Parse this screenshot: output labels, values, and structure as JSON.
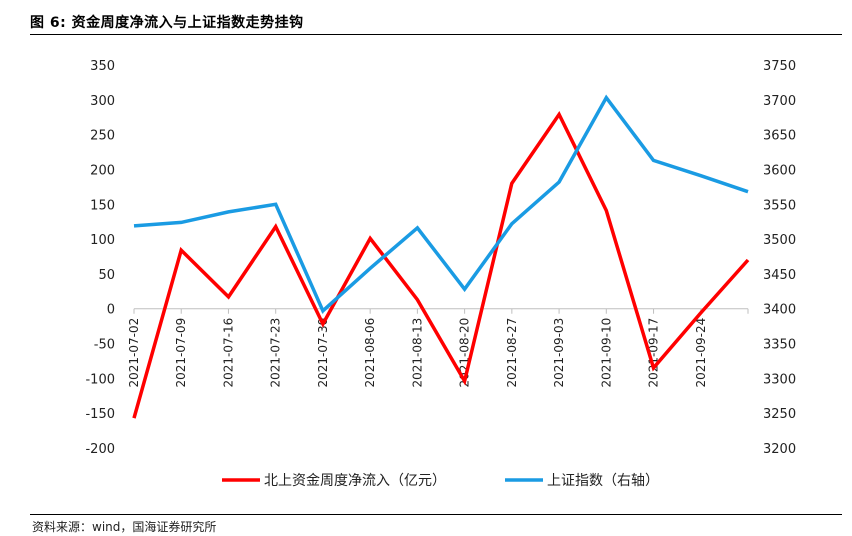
{
  "figure_title": "图 6:  资金周度净流入与上证指数走势挂钩",
  "source": "资料来源：wind，国海证券研究所",
  "colors": {
    "north_flow": "#ff0000",
    "sh_index": "#1a9be3",
    "axis": "#bfbfbf"
  },
  "chart_data": {
    "type": "line",
    "title": "",
    "x_tick_labels": [
      "2021-07-02",
      "2021-07-09",
      "2021-07-16",
      "2021-07-23",
      "2021-07-30",
      "2021-08-06",
      "2021-08-13",
      "2021-08-20",
      "2021-08-27",
      "2021-09-03",
      "2021-09-10",
      "2021-09-17",
      "2021-09-24"
    ],
    "x": [
      "2021-07-02",
      "2021-07-09",
      "2021-07-16",
      "2021-07-23",
      "2021-07-30",
      "2021-08-06",
      "2021-08-13",
      "2021-08-20",
      "2021-08-27",
      "2021-09-03",
      "2021-09-10",
      "2021-09-17",
      "2021-09-24",
      "2021-10-01"
    ],
    "y_left": {
      "ylim": [
        -200,
        350
      ],
      "ticks": [
        "350",
        "300",
        "250",
        "200",
        "150",
        "100",
        "50",
        "0",
        "-50",
        "-100",
        "-150",
        "-200"
      ]
    },
    "y_right": {
      "ylim": [
        3200,
        3750
      ],
      "ticks": [
        "3750",
        "3700",
        "3650",
        "3600",
        "3550",
        "3500",
        "3450",
        "3400",
        "3350",
        "3300",
        "3250",
        "3200"
      ]
    },
    "series": [
      {
        "name": "北上资金周度净流入（亿元）",
        "axis": "left",
        "values": [
          -157,
          84,
          17,
          118,
          -22,
          101,
          13,
          -104,
          180,
          279,
          141,
          -85,
          -6,
          70
        ]
      },
      {
        "name": "上证指数（右轴）",
        "axis": "right",
        "values": [
          3519,
          3524,
          3539,
          3550,
          3397,
          3458,
          3516,
          3428,
          3522,
          3582,
          3703,
          3613,
          3591,
          3568
        ]
      }
    ],
    "legend": "bottom",
    "grid": false
  }
}
